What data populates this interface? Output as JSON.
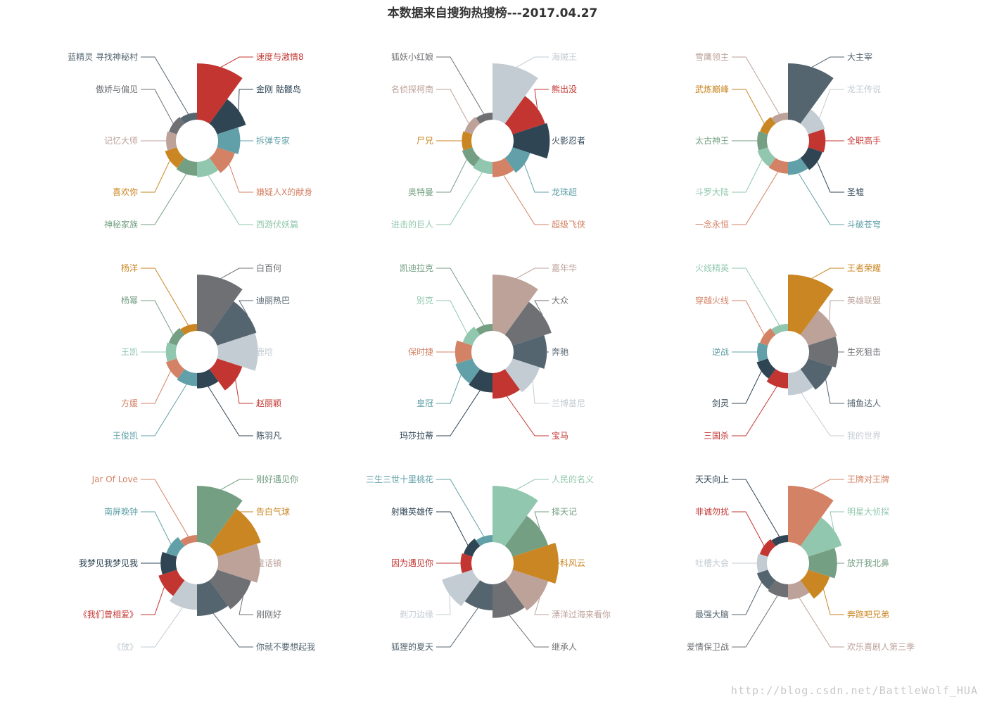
{
  "title": "本数据来自搜狗热搜榜---2017.04.27",
  "watermark": "http://blog.csdn.net/BattleWolf_HUA",
  "palette": [
    "#c23531",
    "#2f4554",
    "#61a0a8",
    "#d48265",
    "#91c7ae",
    "#749f83",
    "#ca8622",
    "#bda29a",
    "#6e7074",
    "#546570",
    "#c4ccd3"
  ],
  "chart_data": [
    {
      "type": "pie",
      "rose": "radius",
      "categories": [
        "速度与激情8",
        "金刚 骷髅岛",
        "拆弹专家",
        "嫌疑人X的献身",
        "西游伏妖篇",
        "神秘家族",
        "喜欢你",
        "记忆大师",
        "傲娇与偏见",
        "蓝精灵 寻找神秘村"
      ],
      "values": [
        110,
        72,
        60,
        55,
        50,
        48,
        46,
        42,
        40,
        38
      ],
      "colors": [
        "#c23531",
        "#2f4554",
        "#61a0a8",
        "#d48265",
        "#91c7ae",
        "#749f83",
        "#ca8622",
        "#bda29a",
        "#6e7074",
        "#546570"
      ]
    },
    {
      "type": "pie",
      "rose": "radius",
      "categories": [
        "海贼王",
        "熊出没",
        "火影忍者",
        "龙珠超",
        "超级飞侠",
        "进击的巨人",
        "奥特曼",
        "尸兄",
        "名侦探柯南",
        "狐妖小红娘"
      ],
      "values": [
        110,
        75,
        78,
        50,
        45,
        40,
        38,
        36,
        34,
        32
      ],
      "colors": [
        "#c4ccd3",
        "#c23531",
        "#2f4554",
        "#61a0a8",
        "#d48265",
        "#91c7ae",
        "#749f83",
        "#ca8622",
        "#bda29a",
        "#6e7074"
      ]
    },
    {
      "type": "pie",
      "rose": "radius",
      "categories": [
        "大主宰",
        "龙王传说",
        "全职高手",
        "圣墟",
        "斗破苍穹",
        "一念永恒",
        "斗罗大陆",
        "太古神王",
        "武炼巅峰",
        "雪鹰领主"
      ],
      "values": [
        110,
        52,
        50,
        48,
        45,
        43,
        42,
        40,
        38,
        36
      ],
      "colors": [
        "#546570",
        "#c4ccd3",
        "#c23531",
        "#2f4554",
        "#61a0a8",
        "#d48265",
        "#91c7ae",
        "#749f83",
        "#ca8622",
        "#bda29a"
      ]
    },
    {
      "type": "pie",
      "rose": "radius",
      "categories": [
        "白百何",
        "迪丽热巴",
        "鹿晗",
        "赵丽颖",
        "陈羽凡",
        "王俊凯",
        "方媛",
        "王凯",
        "杨幂",
        "杨洋"
      ],
      "values": [
        110,
        90,
        88,
        70,
        55,
        52,
        50,
        48,
        46,
        44
      ],
      "colors": [
        "#6e7074",
        "#546570",
        "#c4ccd3",
        "#c23531",
        "#2f4554",
        "#61a0a8",
        "#d48265",
        "#91c7ae",
        "#749f83",
        "#ca8622"
      ]
    },
    {
      "type": "pie",
      "rose": "radius",
      "categories": [
        "嘉年华",
        "大众",
        "奔驰",
        "兰博基尼",
        "宝马",
        "玛莎拉蒂",
        "皇冠",
        "保时捷",
        "别克",
        "凯迪拉克"
      ],
      "values": [
        110,
        100,
        95,
        92,
        90,
        86,
        85,
        84,
        80,
        78
      ],
      "colors": [
        "#bda29a",
        "#6e7074",
        "#546570",
        "#c4ccd3",
        "#c23531",
        "#2f4554",
        "#61a0a8",
        "#d48265",
        "#91c7ae",
        "#749f83"
      ]
    },
    {
      "type": "pie",
      "rose": "radius",
      "categories": [
        "王者荣耀",
        "英雄联盟",
        "生死狙击",
        "捕鱼达人",
        "我的世界",
        "三国杀",
        "剑灵",
        "逆战",
        "穿越火线",
        "火线精英"
      ],
      "values": [
        110,
        72,
        70,
        65,
        60,
        50,
        45,
        42,
        40,
        38
      ],
      "colors": [
        "#ca8622",
        "#bda29a",
        "#6e7074",
        "#546570",
        "#c4ccd3",
        "#c23531",
        "#2f4554",
        "#61a0a8",
        "#d48265",
        "#91c7ae"
      ]
    },
    {
      "type": "pie",
      "rose": "radius",
      "categories": [
        "刚好遇见你",
        "告白气球",
        "童话镇",
        "刚刚好",
        "你就不要想起我",
        "《放》",
        "《我们曾相爱》",
        "我梦见我梦见我",
        "南屏晚钟",
        "Jar Of Love"
      ],
      "values": [
        110,
        105,
        103,
        100,
        98,
        95,
        92,
        90,
        88,
        86
      ],
      "colors": [
        "#749f83",
        "#ca8622",
        "#bda29a",
        "#6e7074",
        "#546570",
        "#c4ccd3",
        "#c23531",
        "#2f4554",
        "#61a0a8",
        "#d48265"
      ]
    },
    {
      "type": "pie",
      "rose": "radius",
      "categories": [
        "人民的名义",
        "择天记",
        "外科风云",
        "漂洋过海来看你",
        "继承人",
        "狐狸的夏天",
        "剃刀边缘",
        "因为遇见你",
        "射雕英雄传",
        "三生三世十里桃花"
      ],
      "values": [
        110,
        85,
        95,
        85,
        80,
        70,
        78,
        50,
        48,
        45
      ],
      "colors": [
        "#91c7ae",
        "#749f83",
        "#ca8622",
        "#bda29a",
        "#6e7074",
        "#546570",
        "#c4ccd3",
        "#c23531",
        "#2f4554",
        "#61a0a8"
      ]
    },
    {
      "type": "pie",
      "rose": "radius",
      "categories": [
        "王牌对王牌",
        "明星大侦探",
        "放开我北鼻",
        "奔跑吧兄弟",
        "欢乐喜剧人第三季",
        "爱情保卫战",
        "最强大脑",
        "吐槽大会",
        "非诚勿扰",
        "天天向上"
      ],
      "values": [
        110,
        82,
        72,
        65,
        55,
        52,
        50,
        48,
        46,
        44
      ],
      "colors": [
        "#d48265",
        "#91c7ae",
        "#749f83",
        "#ca8622",
        "#bda29a",
        "#6e7074",
        "#546570",
        "#c4ccd3",
        "#c23531",
        "#2f4554"
      ]
    }
  ]
}
